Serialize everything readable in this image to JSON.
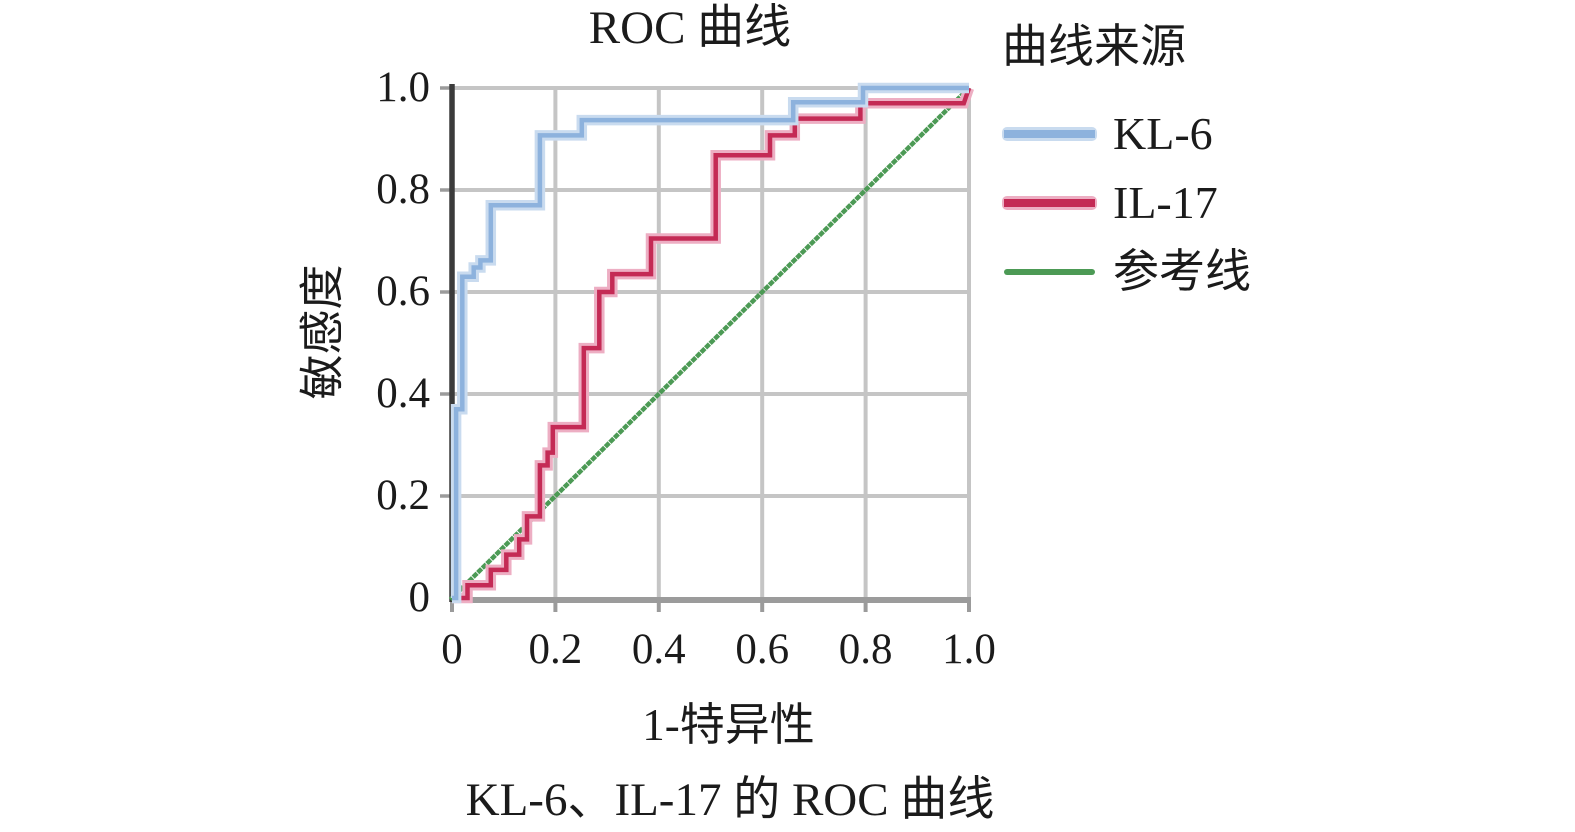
{
  "title": "ROC 曲线",
  "caption": "KL-6、IL-17 的 ROC 曲线",
  "axis": {
    "x_label": "1-特异性",
    "y_label": "敏感度"
  },
  "legend": {
    "title": "曲线来源",
    "entries": [
      {
        "label": "KL-6",
        "color": "#8db2dd",
        "halo": "#c9dbef"
      },
      {
        "label": "IL-17",
        "color": "#c42a55",
        "halo": "#edaec3"
      },
      {
        "label": "参考线",
        "color": "#4c9a55",
        "halo": null
      }
    ]
  },
  "chart_data": {
    "type": "line",
    "subtype": "roc-step",
    "title": "ROC 曲线",
    "xlabel": "1-特异性",
    "ylabel": "敏感度",
    "xlim": [
      0,
      1
    ],
    "ylim": [
      0,
      1
    ],
    "xticks": [
      "0",
      "0.2",
      "0.4",
      "0.6",
      "0.8",
      "1.0"
    ],
    "yticks": [
      "0",
      "0.2",
      "0.4",
      "0.6",
      "0.8",
      "1.0"
    ],
    "grid": true,
    "grid_color": "#c5c5c5",
    "axis_color_left": "#3b3b3b",
    "axis_color_bottom": "#9b9b9b",
    "legend_position": "right",
    "series": [
      {
        "name": "KL-6",
        "color": "#8db2dd",
        "halo": "#c9dbef",
        "style": "step",
        "points": [
          [
            0,
            0
          ],
          [
            0.008,
            0
          ],
          [
            0.008,
            0.37
          ],
          [
            0.02,
            0.37
          ],
          [
            0.02,
            0.63
          ],
          [
            0.042,
            0.63
          ],
          [
            0.042,
            0.648
          ],
          [
            0.055,
            0.648
          ],
          [
            0.055,
            0.662
          ],
          [
            0.075,
            0.662
          ],
          [
            0.075,
            0.77
          ],
          [
            0.17,
            0.77
          ],
          [
            0.17,
            0.907
          ],
          [
            0.251,
            0.907
          ],
          [
            0.251,
            0.937
          ],
          [
            0.66,
            0.937
          ],
          [
            0.66,
            0.972
          ],
          [
            0.795,
            0.972
          ],
          [
            0.795,
            1.0
          ],
          [
            1.0,
            1.0
          ]
        ]
      },
      {
        "name": "IL-17",
        "color": "#c42a55",
        "halo": "#edaec3",
        "style": "step",
        "points": [
          [
            0,
            0
          ],
          [
            0.03,
            0
          ],
          [
            0.03,
            0.025
          ],
          [
            0.075,
            0.025
          ],
          [
            0.075,
            0.055
          ],
          [
            0.105,
            0.055
          ],
          [
            0.105,
            0.085
          ],
          [
            0.13,
            0.085
          ],
          [
            0.13,
            0.115
          ],
          [
            0.145,
            0.115
          ],
          [
            0.145,
            0.16
          ],
          [
            0.17,
            0.16
          ],
          [
            0.17,
            0.26
          ],
          [
            0.185,
            0.26
          ],
          [
            0.185,
            0.285
          ],
          [
            0.195,
            0.285
          ],
          [
            0.195,
            0.335
          ],
          [
            0.255,
            0.335
          ],
          [
            0.255,
            0.49
          ],
          [
            0.285,
            0.49
          ],
          [
            0.285,
            0.6
          ],
          [
            0.31,
            0.6
          ],
          [
            0.31,
            0.635
          ],
          [
            0.385,
            0.635
          ],
          [
            0.385,
            0.705
          ],
          [
            0.51,
            0.705
          ],
          [
            0.51,
            0.868
          ],
          [
            0.615,
            0.868
          ],
          [
            0.615,
            0.907
          ],
          [
            0.663,
            0.907
          ],
          [
            0.663,
            0.94
          ],
          [
            0.79,
            0.94
          ],
          [
            0.79,
            0.97
          ],
          [
            0.99,
            0.97
          ],
          [
            1.0,
            1.0
          ]
        ]
      },
      {
        "name": "参考线",
        "color": "#4c9a55",
        "halo": null,
        "style": "dotted",
        "points": [
          [
            0,
            0
          ],
          [
            1,
            1
          ]
        ]
      }
    ]
  }
}
